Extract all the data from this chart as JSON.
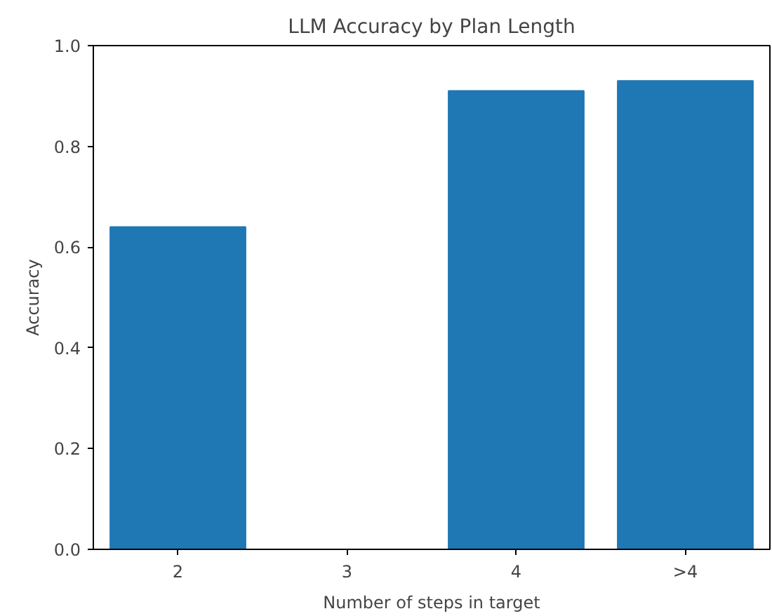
{
  "chart_data": {
    "type": "bar",
    "title": "LLM Accuracy by Plan Length",
    "xlabel": "Number of steps in target",
    "ylabel": "Accuracy",
    "categories": [
      "2",
      "3",
      "4",
      ">4"
    ],
    "values": [
      0.64,
      0,
      0.91,
      0.93
    ],
    "color": "#1f77b4",
    "ylim": [
      0.0,
      1.0
    ],
    "yticks": [
      {
        "value": 0.0,
        "label": "0.0"
      },
      {
        "value": 0.2,
        "label": "0.2"
      },
      {
        "value": 0.4,
        "label": "0.4"
      },
      {
        "value": 0.6,
        "label": "0.6"
      },
      {
        "value": 0.8,
        "label": "0.8"
      },
      {
        "value": 1.0,
        "label": "1.0"
      }
    ],
    "grid": false
  }
}
